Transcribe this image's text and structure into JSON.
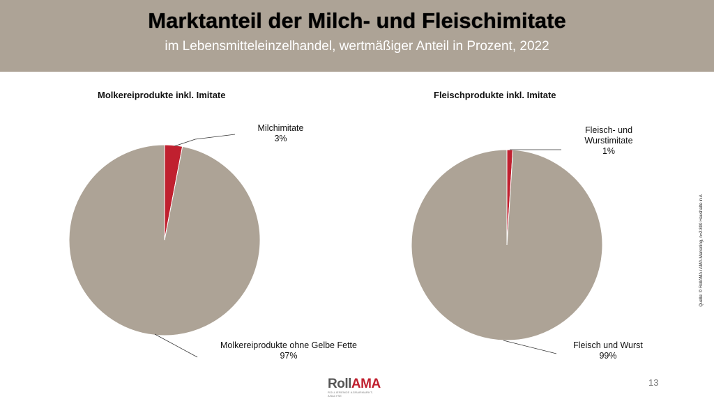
{
  "header": {
    "title": "Marktanteil der Milch- und Fleischimitate",
    "subtitle": "im Lebensmitteleinzelhandel, wertmäßiger Anteil in Prozent, 2022"
  },
  "chart_data": [
    {
      "type": "pie",
      "title": "Molkereiprodukte inkl. Imitate",
      "slices": [
        {
          "label": "Milchimitate",
          "value": 3,
          "value_label": "3%",
          "color": "#c0202f"
        },
        {
          "label": "Molkereiprodukte ohne Gelbe Fette",
          "value": 97,
          "value_label": "97%",
          "color": "#ada396"
        }
      ]
    },
    {
      "type": "pie",
      "title": "Fleischprodukte inkl. Imitate",
      "slices": [
        {
          "label": "Fleisch- und Wurstimitate",
          "value": 1,
          "value_label": "1%",
          "color": "#c0202f"
        },
        {
          "label": "Fleisch und Wurst",
          "value": 99,
          "value_label": "99%",
          "color": "#ada396"
        }
      ]
    }
  ],
  "source": "Quelle: © RollAMA / AMA-Marketing, n=2.800 Haushalte in A",
  "logo": {
    "roll": "Roll",
    "ama": "AMA",
    "tagline": "ROLLIERENDE AGRARMARKT-ANALYSE"
  },
  "page_number": "13"
}
